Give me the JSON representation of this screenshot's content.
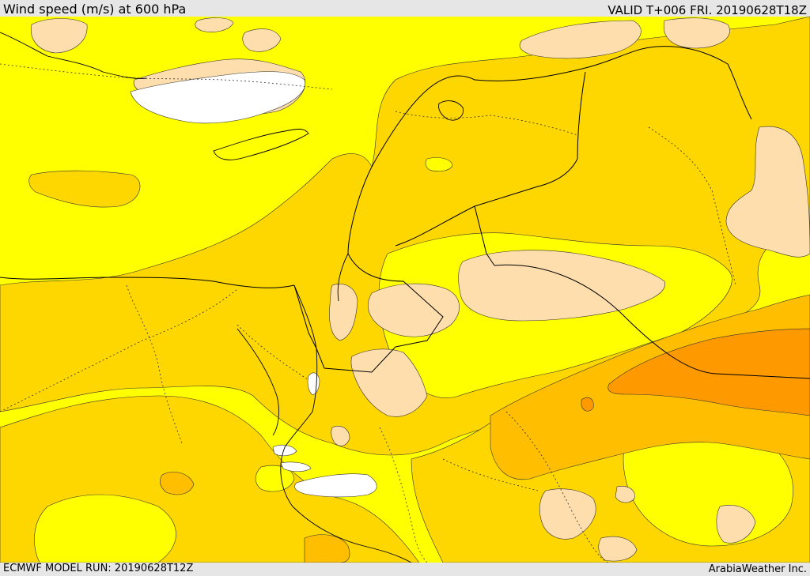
{
  "header": {
    "title": "Wind speed (m/s) at 600 hPa",
    "valid": "VALID T+006 FRI. 20190628T18Z"
  },
  "footer": {
    "model_run": "ECMWF MODEL RUN: 20190628T12Z",
    "credit": "ArabiaWeather Inc."
  },
  "colors": {
    "band_lightest": "#ffffff",
    "band_light": "#ffdead",
    "band_base": "#ffff00",
    "band_mid": "#ffd700",
    "band_strong": "#ffbf00",
    "band_stronger": "#ffa500",
    "band_strongest": "#ff9900",
    "borders": "#000000"
  }
}
